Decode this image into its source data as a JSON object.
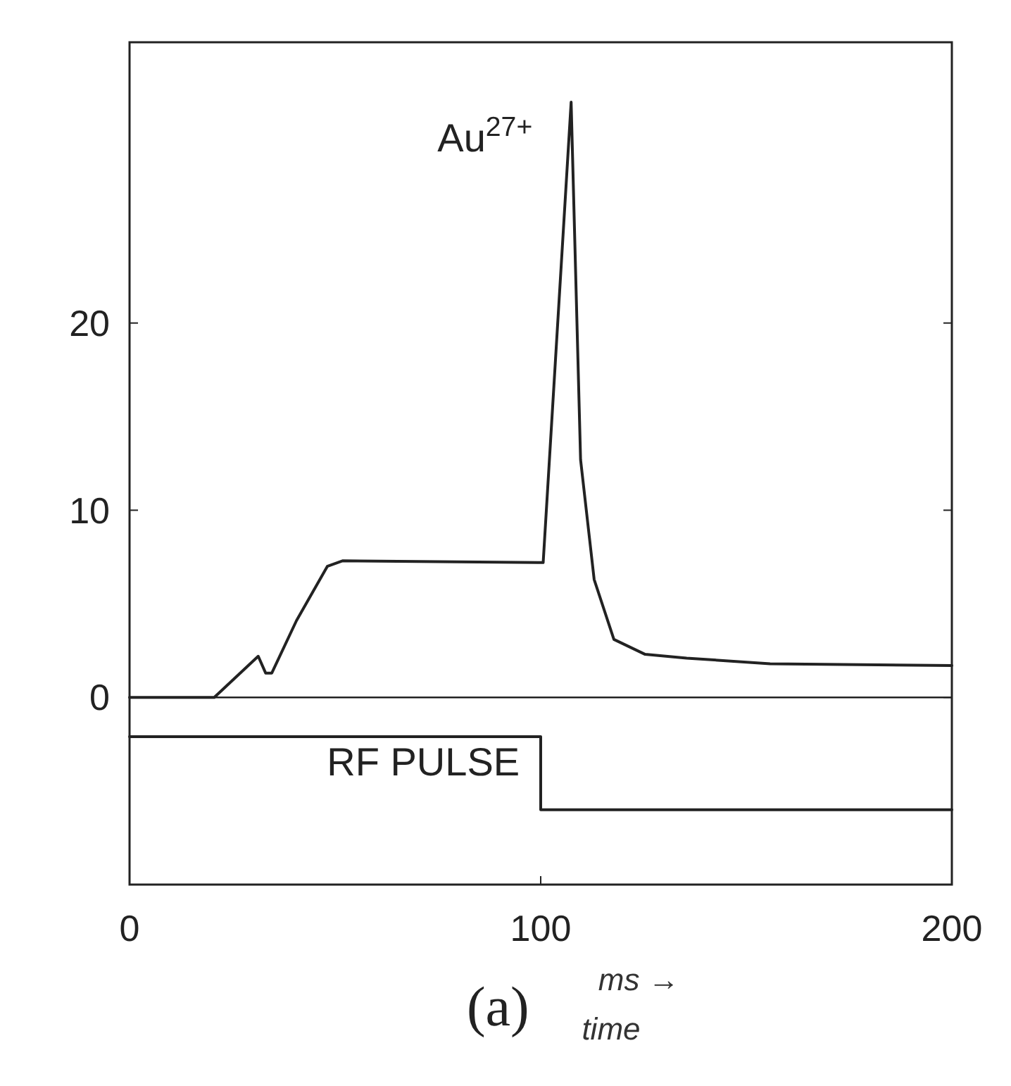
{
  "chart_data": {
    "type": "line",
    "xlim": [
      0,
      200
    ],
    "xticks": [
      0,
      100,
      200
    ],
    "ylim": [
      -10,
      35
    ],
    "yticks": [
      0,
      10,
      20
    ],
    "legend": false,
    "grid": false,
    "marker": "none",
    "line_style": "solid",
    "series": [
      {
        "name": "Au$^{27+}$",
        "color": "#222222",
        "x": [
          0,
          20.6,
          31.3,
          33.1,
          34.6,
          40.6,
          48.1,
          51.9,
          100.6,
          107.4,
          109.7,
          113,
          117.8,
          125.4,
          135.5,
          155.8,
          200
        ],
        "values": [
          0,
          0,
          2.2,
          1.3,
          1.3,
          4.1,
          7,
          7.3,
          7.2,
          31.8,
          12.7,
          6.3,
          3.1,
          2.3,
          2.1,
          1.8,
          1.7
        ]
      },
      {
        "name": "RF PULSE",
        "type": "step",
        "color": "#222222",
        "x": [
          0,
          100,
          200
        ],
        "values": [
          -2.1,
          -6,
          -6
        ]
      }
    ],
    "ref_lines": [
      {
        "axis": "y",
        "value": 0,
        "color": "#222222"
      }
    ],
    "annotations": [
      "(a)",
      "ms →",
      "time"
    ]
  }
}
